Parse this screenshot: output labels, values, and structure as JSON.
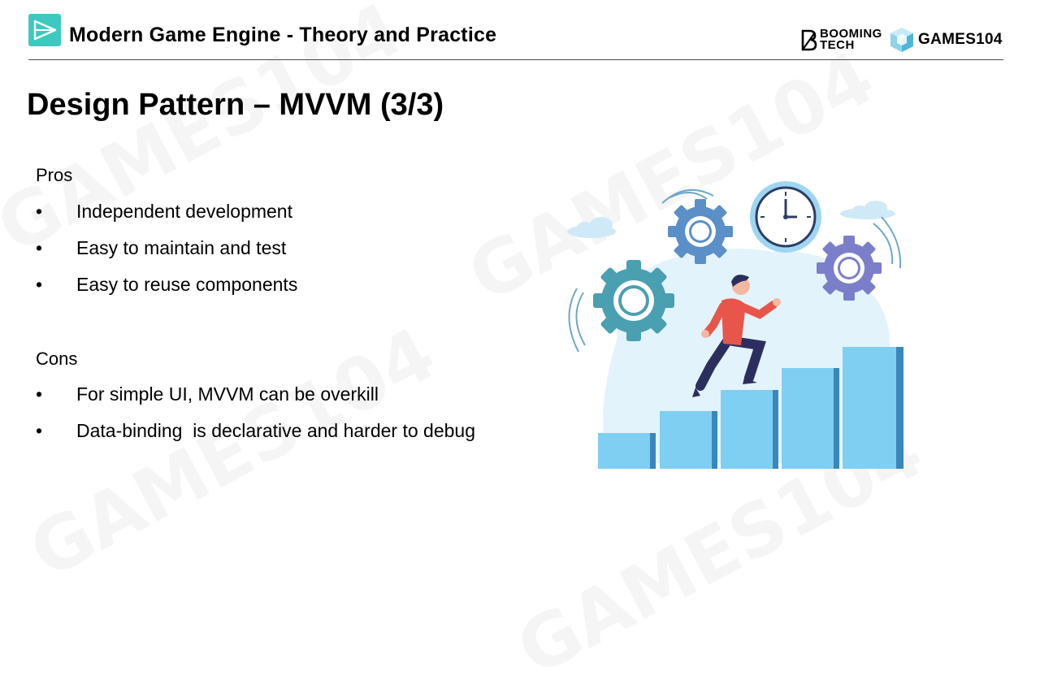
{
  "header": {
    "title": "Modern Game Engine - Theory and Practice",
    "brand_booming_line1": "BOOMING",
    "brand_booming_line2": "TECH",
    "brand_games": "GAMES104"
  },
  "slide": {
    "title": "Design Pattern – MVVM (3/3)"
  },
  "pros": {
    "label": "Pros",
    "items": [
      "Independent development",
      "Easy to maintain and test",
      "Easy to reuse components"
    ]
  },
  "cons": {
    "label": "Cons",
    "items": [
      "For simple UI, MVVM can be overkill",
      "Data-binding  is declarative and harder to debug"
    ]
  },
  "bullet_glyph": "•",
  "colors": {
    "logo_teal": "#3ec9c0",
    "step_blue": "#7fcff2",
    "step_shadow": "#3a87b9",
    "gear_teal": "#4a9fb0",
    "gear_blue": "#5a8fc8",
    "gear_purple": "#7b7fc9",
    "runner_shirt": "#e8564b",
    "runner_pants": "#2c2f5e"
  },
  "icons": {
    "header_logo": "play-triangle-icon",
    "booming_logo": "booming-b-icon",
    "games_logo": "cube-icon"
  }
}
